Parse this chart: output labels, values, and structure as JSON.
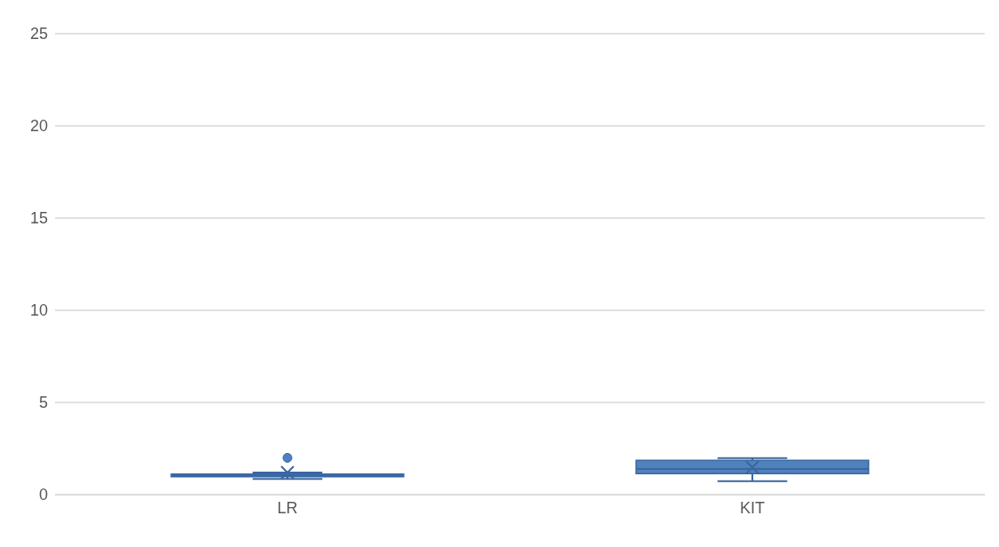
{
  "chart_data": {
    "type": "box",
    "categories": [
      "LR",
      "KIT"
    ],
    "color": "#4f81bd",
    "ylim": [
      0,
      25
    ],
    "yticks": [
      0,
      5,
      10,
      15,
      20,
      25
    ],
    "grid": "y",
    "boxes": [
      {
        "low": 0.85,
        "q1": 0.97,
        "median": 1.05,
        "q3": 1.12,
        "high": 1.2,
        "mean": 1.2,
        "outliers": [
          2.0
        ]
      },
      {
        "low": 0.73,
        "q1": 1.14,
        "median": 1.4,
        "q3": 1.86,
        "high": 1.98,
        "mean": 1.48
      }
    ]
  }
}
